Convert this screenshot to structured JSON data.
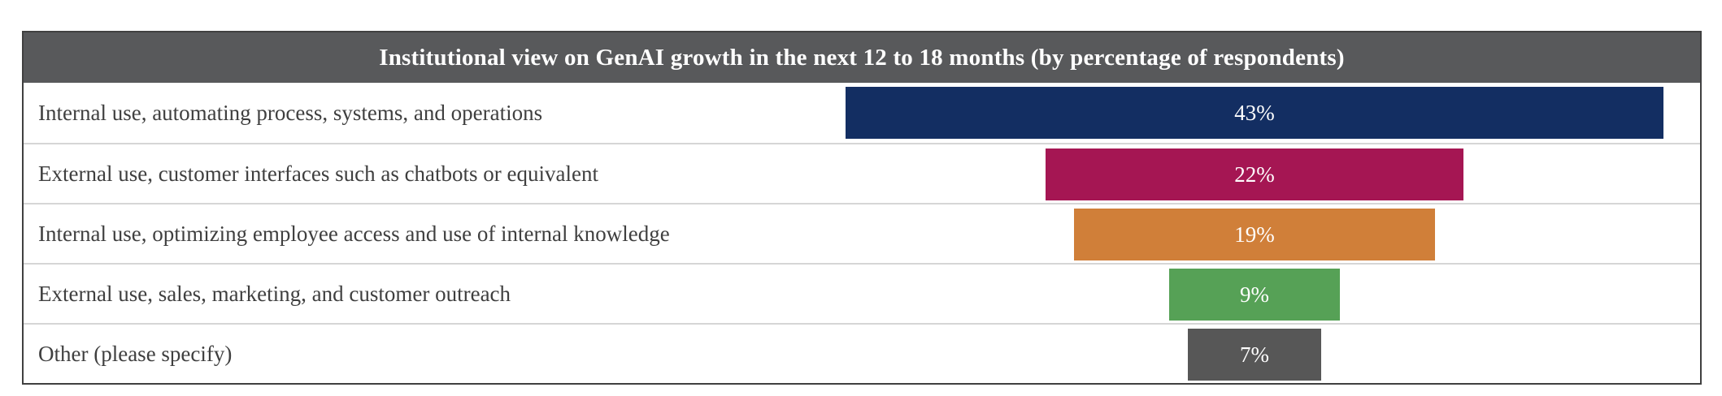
{
  "chart_data": {
    "type": "bar",
    "orientation": "horizontal",
    "bar_alignment": "centered",
    "title": "Institutional view on GenAI growth in the next 12 to 18 months (by percentage of respondents)",
    "categories": [
      "Internal use, automating process, systems, and operations",
      "External use, customer interfaces such as chatbots or equivalent",
      "Internal use, optimizing employee access and use of internal knowledge",
      "External use, sales, marketing, and customer outreach",
      "Other (please specify)"
    ],
    "values": [
      43,
      22,
      19,
      9,
      7
    ],
    "value_labels": [
      "43%",
      "22%",
      "19%",
      "9%",
      "7%"
    ],
    "bar_colors": [
      "#132e62",
      "#a51653",
      "#d07f39",
      "#56a156",
      "#575757"
    ],
    "xlim": [
      0,
      43
    ],
    "ylabel": "",
    "xlabel": "",
    "legend": "none",
    "grid": "off",
    "value_label_position": "inside-center",
    "value_label_color": "#ffffff"
  },
  "style": {
    "header_bg": "#58595b",
    "header_text_color": "#ffffff",
    "border_color": "#404040",
    "row_separator_color": "#d6d6d6",
    "label_color": "#3f3f3f",
    "background": "#ffffff"
  }
}
